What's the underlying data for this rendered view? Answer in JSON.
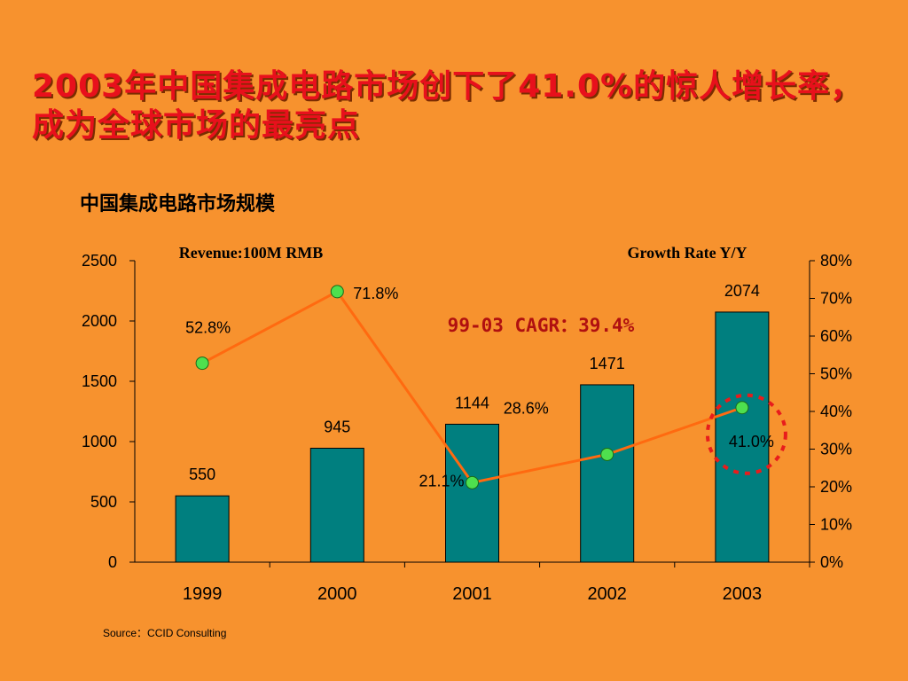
{
  "headline": "2003年中国集成电路市场创下了41.0%的惊人增长率，成为全球市场的最亮点",
  "source": "Source：CCID Consulting",
  "chart_data": {
    "title": "中国集成电路市场规模",
    "type": "bar",
    "categories": [
      "1999",
      "2000",
      "2001",
      "2002",
      "2003"
    ],
    "series": [
      {
        "name": "Revenue:100M RMB",
        "type": "bar",
        "axis": "left",
        "values": [
          550,
          945,
          1144,
          1471,
          2074
        ]
      },
      {
        "name": "Growth Rate Y/Y",
        "type": "line",
        "axis": "right",
        "values": [
          52.8,
          71.8,
          21.1,
          28.6,
          41.0
        ]
      }
    ],
    "line_labels": [
      "52.8%",
      "71.8%",
      "21.1%",
      "28.6%",
      "41.0%"
    ],
    "left_axis": {
      "label": "Revenue:100M RMB",
      "ylim": [
        0,
        2500
      ],
      "ticks": [
        "0",
        "500",
        "1000",
        "1500",
        "2000",
        "2500"
      ]
    },
    "right_axis": {
      "label": "Growth Rate Y/Y",
      "ylim": [
        0,
        80
      ],
      "ticks": [
        "0%",
        "10%",
        "20%",
        "30%",
        "40%",
        "50%",
        "60%",
        "70%",
        "80%"
      ]
    },
    "annotation": "99-03 CAGR：39.4%",
    "highlight_category": "2003",
    "grid": false,
    "legend": "none",
    "colors": {
      "bar": "#007f7f",
      "line": "#ff6a10",
      "marker": "#4ee04e",
      "highlight": "#e81c1c",
      "annotation": "#b01010"
    }
  }
}
